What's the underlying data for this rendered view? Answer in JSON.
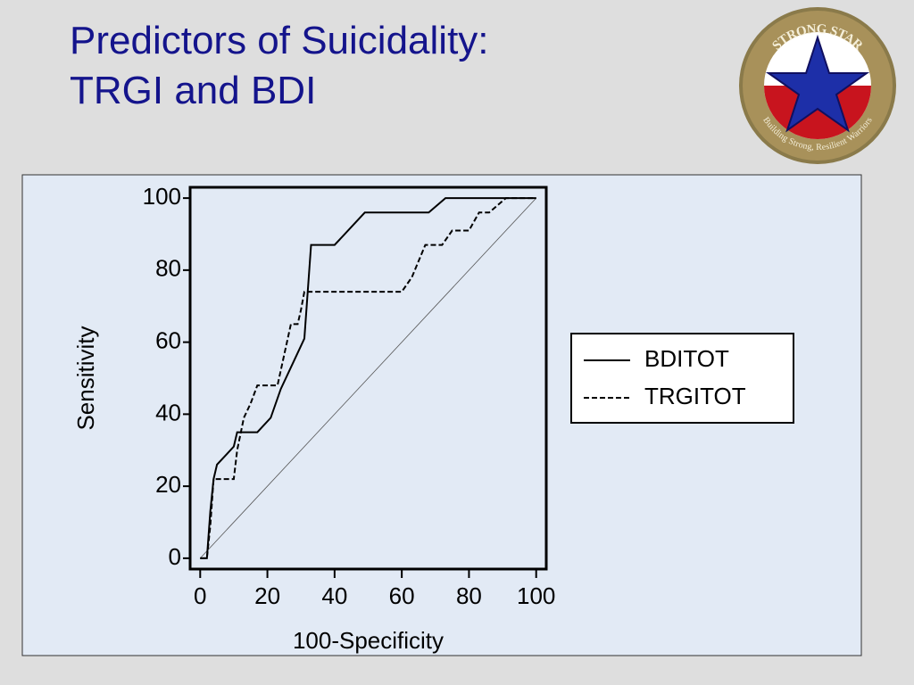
{
  "slide_title": [
    "Predictors of Suicidality:",
    "TRGI and BDI"
  ],
  "logo": {
    "top_text": "STRONG STAR",
    "bottom_text": "Building Strong, Resilient Warriors"
  },
  "chart_data": {
    "type": "line",
    "x_label": "100-Specificity",
    "y_label": "Sensitivity",
    "xlim": [
      -3,
      103
    ],
    "ylim": [
      -3,
      103
    ],
    "xticks": [
      0,
      20,
      40,
      60,
      80,
      100
    ],
    "yticks": [
      0,
      20,
      40,
      60,
      80,
      100
    ],
    "grid": false,
    "legend_position": "right",
    "series": [
      {
        "name": "BDITOT",
        "color": "#000000",
        "line_style": "solid",
        "x": [
          0,
          2,
          3,
          4,
          5,
          8,
          10,
          11,
          17,
          21,
          24,
          27,
          29,
          31,
          33,
          40,
          49,
          68,
          73,
          100
        ],
        "values": [
          0,
          0,
          13,
          22,
          26,
          29,
          31,
          35,
          35,
          39,
          47,
          53,
          57,
          61,
          87,
          87,
          96,
          96,
          100,
          100
        ]
      },
      {
        "name": "TRGITOT",
        "color": "#000000",
        "line_style": "dashed",
        "x": [
          0,
          2,
          3,
          4,
          10,
          11,
          13,
          15,
          17,
          23,
          27,
          29,
          30,
          31,
          60,
          63,
          67,
          72,
          75,
          80,
          83,
          86,
          91,
          100
        ],
        "values": [
          0,
          0,
          9,
          22,
          22,
          30,
          39,
          43,
          48,
          48,
          65,
          65,
          69,
          74,
          74,
          78,
          87,
          87,
          91,
          91,
          96,
          96,
          100,
          100
        ]
      }
    ]
  }
}
